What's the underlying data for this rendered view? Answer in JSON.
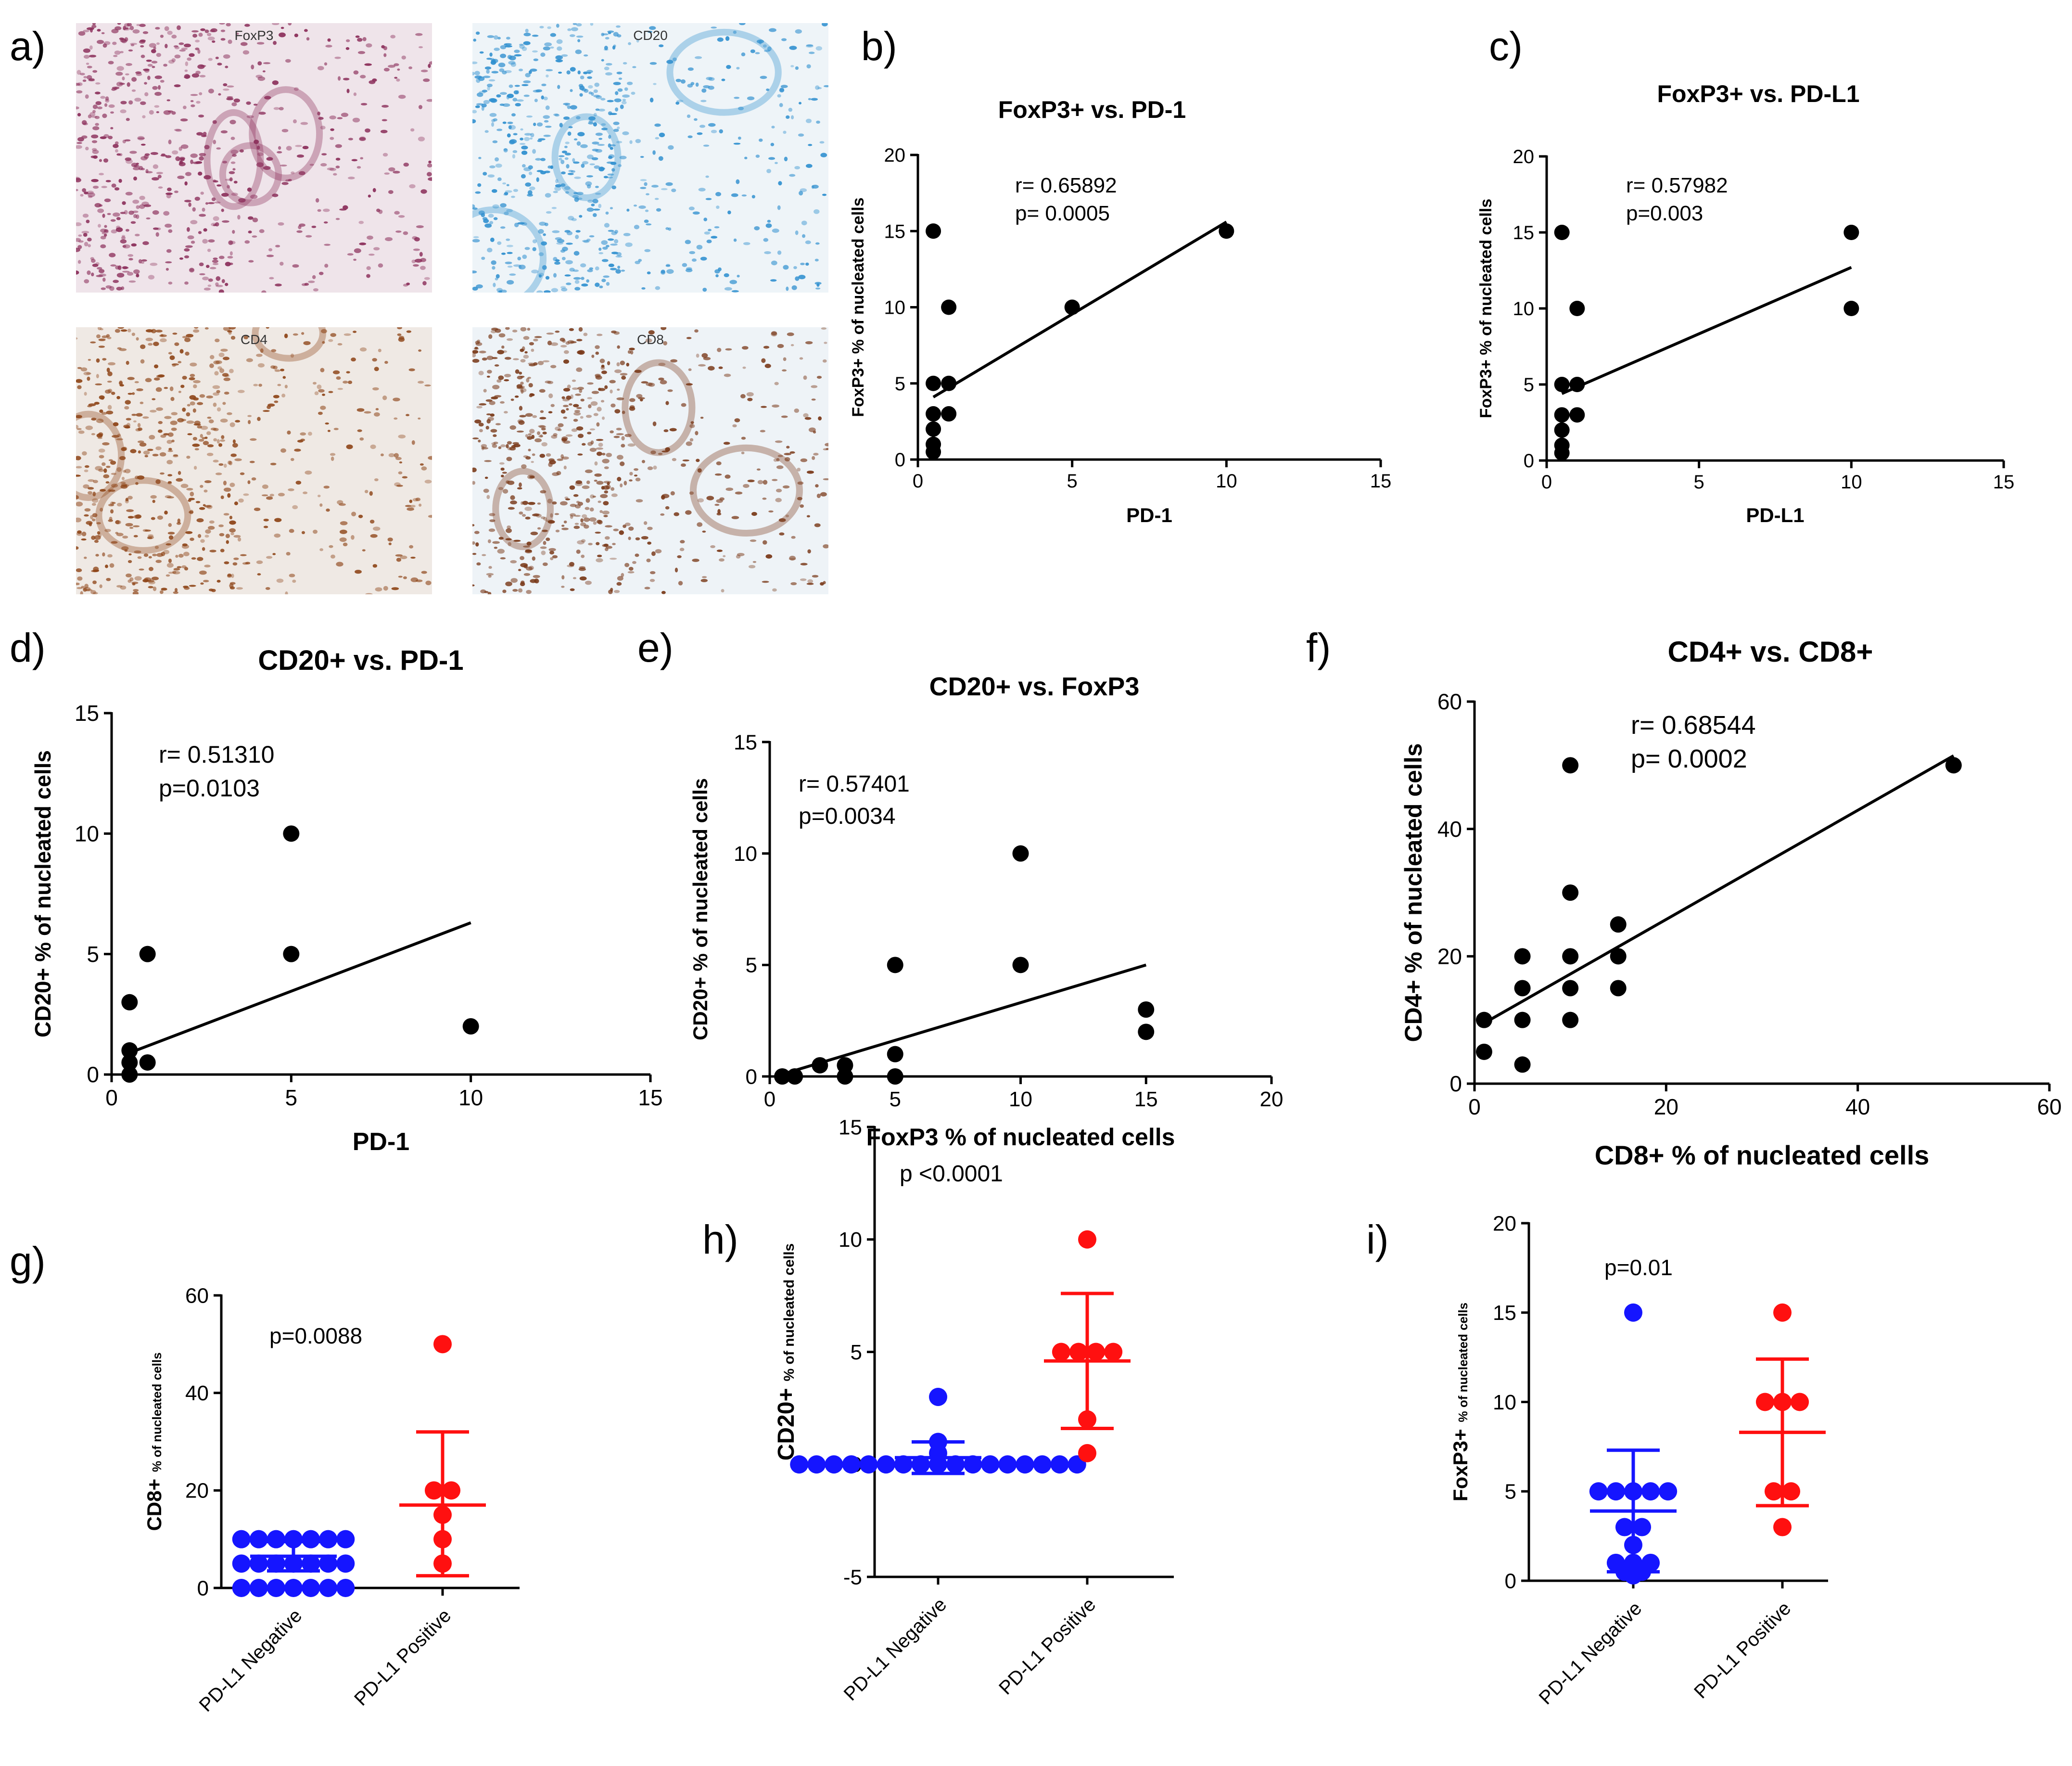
{
  "figure": {
    "panel_letters": [
      "a)",
      "b)",
      "c)",
      "d)",
      "e)",
      "f)",
      "g)",
      "h)",
      "i)"
    ],
    "colors": {
      "ink": "#000000",
      "negative_group": "#1515ff",
      "positive_group": "#ff1010",
      "foxp3_tissue_bg": "#efe4ea",
      "foxp3_tissue_stain": "#8b2e5a",
      "cd20_tissue_bg": "#eef4f8",
      "cd20_tissue_stain": "#2f8fcf",
      "cd4_tissue_bg": "#efe9e4",
      "cd4_tissue_stain": "#8e4518",
      "cd8_tissue_bg": "#eef3f7",
      "cd8_tissue_stain": "#7a3a1a"
    }
  },
  "panel_a": {
    "images": [
      {
        "label": "FoxP3",
        "icon": "foxp3-stained-tissue-image"
      },
      {
        "label": "CD20",
        "icon": "cd20-stained-tissue-image"
      },
      {
        "label": "CD4",
        "icon": "cd4-stained-tissue-image"
      },
      {
        "label": "CD8",
        "icon": "cd8-stained-tissue-image"
      }
    ]
  },
  "chart_data": [
    {
      "id": "b",
      "type": "scatter",
      "title": "FoxP3+ vs. PD-1",
      "xlabel": "PD-1",
      "ylabel": "FoxP3+ % of nucleated cells",
      "xlim": [
        0,
        15
      ],
      "ylim": [
        0,
        20
      ],
      "xticks": [
        0,
        5,
        10,
        15
      ],
      "yticks": [
        0,
        5,
        10,
        15,
        20
      ],
      "annotation": [
        "r= 0.65892",
        "p= 0.0005"
      ],
      "points": [
        [
          0.5,
          15
        ],
        [
          0.5,
          5
        ],
        [
          0.5,
          3
        ],
        [
          0.5,
          2
        ],
        [
          0.5,
          1
        ],
        [
          0.5,
          0.5
        ],
        [
          1,
          10
        ],
        [
          1,
          5
        ],
        [
          1,
          3
        ],
        [
          5,
          10
        ],
        [
          10,
          15
        ]
      ],
      "fit_line": {
        "x": [
          0.5,
          10
        ],
        "y": [
          4.1,
          15.6
        ]
      }
    },
    {
      "id": "c",
      "type": "scatter",
      "title": "FoxP3+ vs. PD-L1",
      "xlabel": "PD-L1",
      "ylabel": "FoxP3+ % of nucleated cells",
      "xlim": [
        0,
        15
      ],
      "ylim": [
        0,
        20
      ],
      "xticks": [
        0,
        5,
        10,
        15
      ],
      "yticks": [
        0,
        5,
        10,
        15,
        20
      ],
      "annotation": [
        "r= 0.57982",
        "p=0.003"
      ],
      "points": [
        [
          0.5,
          15
        ],
        [
          0.5,
          5
        ],
        [
          0.5,
          3
        ],
        [
          0.5,
          2
        ],
        [
          0.5,
          1
        ],
        [
          0.5,
          0.5
        ],
        [
          1,
          10
        ],
        [
          1,
          5
        ],
        [
          1,
          3
        ],
        [
          10,
          15
        ],
        [
          10,
          10
        ]
      ],
      "fit_line": {
        "x": [
          0.5,
          10
        ],
        "y": [
          4.4,
          12.7
        ]
      }
    },
    {
      "id": "d",
      "type": "scatter",
      "title": "CD20+ vs. PD-1",
      "xlabel": "PD-1",
      "ylabel": "CD20+  % of nucleated cells",
      "xlim": [
        0,
        15
      ],
      "ylim": [
        0,
        15
      ],
      "xticks": [
        0,
        5,
        10,
        15
      ],
      "yticks": [
        0,
        5,
        10,
        15
      ],
      "annotation": [
        "r= 0.51310",
        "p=0.0103"
      ],
      "points": [
        [
          0.5,
          3
        ],
        [
          0.5,
          1
        ],
        [
          0.5,
          0.5
        ],
        [
          0.5,
          0
        ],
        [
          1,
          5
        ],
        [
          1,
          0.5
        ],
        [
          5,
          10
        ],
        [
          5,
          5
        ],
        [
          10,
          2
        ]
      ],
      "fit_line": {
        "x": [
          0.5,
          10
        ],
        "y": [
          0.9,
          6.3
        ]
      }
    },
    {
      "id": "e",
      "type": "scatter",
      "title": "CD20+ vs. FoxP3",
      "xlabel": "FoxP3 % of nucleated cells",
      "ylabel": "CD20+ % of nucleated cells",
      "xlim": [
        0,
        20
      ],
      "ylim": [
        0,
        15
      ],
      "xticks": [
        0,
        5,
        10,
        15,
        20
      ],
      "yticks": [
        0,
        5,
        10,
        15
      ],
      "annotation": [
        "r= 0.57401",
        "p=0.0034"
      ],
      "points": [
        [
          0.5,
          0
        ],
        [
          1,
          0
        ],
        [
          2,
          0.5
        ],
        [
          3,
          0.5
        ],
        [
          3,
          0
        ],
        [
          5,
          5
        ],
        [
          5,
          1
        ],
        [
          5,
          0
        ],
        [
          10,
          10
        ],
        [
          10,
          5
        ],
        [
          15,
          3
        ],
        [
          15,
          2
        ]
      ],
      "fit_line": {
        "x": [
          0.5,
          15
        ],
        "y": [
          0.1,
          5.0
        ]
      }
    },
    {
      "id": "f",
      "type": "scatter",
      "title": "CD4+ vs. CD8+",
      "xlabel": "CD8+ % of nucleated cells",
      "ylabel": "CD4+ % of nucleated cells",
      "xlim": [
        0,
        60
      ],
      "ylim": [
        0,
        60
      ],
      "xticks": [
        0,
        20,
        40,
        60
      ],
      "yticks": [
        0,
        20,
        40,
        60
      ],
      "annotation": [
        "r= 0.68544",
        "p= 0.0002"
      ],
      "points": [
        [
          1,
          10
        ],
        [
          1,
          5
        ],
        [
          5,
          20
        ],
        [
          5,
          15
        ],
        [
          5,
          10
        ],
        [
          5,
          3
        ],
        [
          10,
          50
        ],
        [
          10,
          30
        ],
        [
          10,
          20
        ],
        [
          10,
          15
        ],
        [
          10,
          10
        ],
        [
          15,
          25
        ],
        [
          15,
          20
        ],
        [
          15,
          15
        ],
        [
          50,
          50
        ]
      ],
      "fit_line": {
        "x": [
          1,
          50
        ],
        "y": [
          9.5,
          51.5
        ]
      }
    },
    {
      "id": "g",
      "type": "scatter",
      "title": "",
      "xlabel": "",
      "ylabel_main": "CD8+",
      "ylabel_sub": "% of nucleated cells",
      "ylim": [
        0,
        60
      ],
      "yticks": [
        0,
        20,
        40,
        60
      ],
      "categories": [
        "PD-L1 Negative",
        "PD-L1 Positive"
      ],
      "annotation": [
        "p=0.0088"
      ],
      "groups": [
        {
          "name": "PD-L1 Negative",
          "mean": 6.5,
          "sd_lo": 3.5,
          "sd_hi": 9.5,
          "values": [
            10,
            10,
            10,
            10,
            10,
            10,
            10,
            5,
            5,
            5,
            5,
            5,
            5,
            5,
            0,
            0,
            0,
            0,
            0,
            0,
            0
          ]
        },
        {
          "name": "PD-L1 Positive",
          "mean": 17,
          "sd_lo": 2.5,
          "sd_hi": 32,
          "values": [
            50,
            20,
            20,
            15,
            10,
            5
          ]
        }
      ]
    },
    {
      "id": "h",
      "type": "scatter",
      "title": "",
      "xlabel": "",
      "ylabel_main": "CD20+",
      "ylabel_sub": "% of nucleated cells",
      "ylim": [
        -5,
        15
      ],
      "yticks": [
        -5,
        0,
        5,
        10,
        15
      ],
      "categories": [
        "PD-L1 Negative",
        "PD-L1 Positive"
      ],
      "annotation": [
        "p <0.0001"
      ],
      "groups": [
        {
          "name": "PD-L1 Negative",
          "mean": 0.3,
          "sd_lo": -0.4,
          "sd_hi": 1.0,
          "values": [
            3,
            1,
            0.5,
            0,
            0,
            0,
            0,
            0,
            0,
            0,
            0,
            0,
            0,
            0,
            0,
            0,
            0,
            0,
            0,
            0
          ]
        },
        {
          "name": "PD-L1 Positive",
          "mean": 4.6,
          "sd_lo": 1.6,
          "sd_hi": 7.6,
          "values": [
            10,
            5,
            5,
            5,
            5,
            2,
            0.5
          ]
        }
      ]
    },
    {
      "id": "i",
      "type": "scatter",
      "title": "",
      "xlabel": "",
      "ylabel_main": "FoxP3+",
      "ylabel_sub": "% of nucleated cells",
      "ylim": [
        0,
        20
      ],
      "yticks": [
        0,
        5,
        10,
        15,
        20
      ],
      "categories": [
        "PD-L1 Negative",
        "PD-L1 Positive"
      ],
      "annotation": [
        "p=0.01"
      ],
      "groups": [
        {
          "name": "PD-L1 Negative",
          "mean": 3.9,
          "sd_lo": 0.5,
          "sd_hi": 7.3,
          "values": [
            15,
            5,
            5,
            5,
            5,
            5,
            3,
            3,
            2,
            1,
            1,
            1,
            0.5,
            0.5,
            0.3
          ]
        },
        {
          "name": "PD-L1 Positive",
          "mean": 8.3,
          "sd_lo": 4.2,
          "sd_hi": 12.4,
          "values": [
            15,
            10,
            10,
            10,
            5,
            5,
            3
          ]
        }
      ]
    }
  ]
}
